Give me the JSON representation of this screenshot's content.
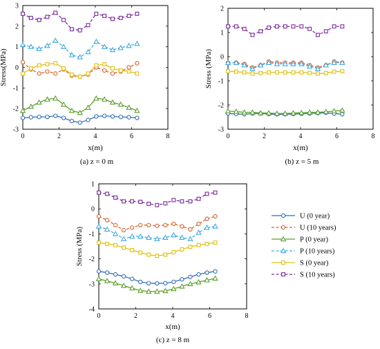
{
  "colors": {
    "U0": "#2f6db5",
    "U10": "#d4622a",
    "P0": "#5aa02c",
    "P10": "#3fa9e0",
    "S0": "#e0c010",
    "S10": "#7b2a9a"
  },
  "legend": [
    {
      "key": "U0",
      "label": "U (0 year)",
      "marker": "circle",
      "dash": false
    },
    {
      "key": "U10",
      "label": "U (10 years)",
      "marker": "circle",
      "dash": true
    },
    {
      "key": "P0",
      "label": "P (0 year)",
      "marker": "triangle",
      "dash": false
    },
    {
      "key": "P10",
      "label": "P (10 years)",
      "marker": "triangle",
      "dash": true
    },
    {
      "key": "S0",
      "label": "S (0 year)",
      "marker": "square",
      "dash": false
    },
    {
      "key": "S10",
      "label": "S (10 years)",
      "marker": "square",
      "dash": true
    }
  ],
  "chart_data": [
    {
      "type": "line",
      "caption": "(a) z = 0 m",
      "xlabel": "x(m)",
      "ylabel": "Stress(MPa)",
      "xlim": [
        0,
        8
      ],
      "ylim": [
        -3,
        3
      ],
      "xticks": [
        "0",
        "2",
        "4",
        "6",
        "8"
      ],
      "yticks": [
        "-3",
        "-2",
        "-1",
        "0",
        "1",
        "2",
        "3"
      ],
      "x": [
        0,
        0.45,
        0.9,
        1.35,
        1.8,
        2.25,
        2.7,
        3.15,
        3.6,
        4.05,
        4.5,
        4.95,
        5.4,
        5.85,
        6.3
      ],
      "series": [
        {
          "name": "U (0 year)",
          "key": "U0",
          "values": [
            -2.45,
            -2.42,
            -2.4,
            -2.4,
            -2.35,
            -2.45,
            -2.6,
            -2.68,
            -2.55,
            -2.38,
            -2.35,
            -2.38,
            -2.4,
            -2.42,
            -2.45
          ]
        },
        {
          "name": "U (10 years)",
          "key": "U10",
          "values": [
            0.25,
            -0.1,
            -0.3,
            -0.2,
            -0.3,
            -0.1,
            -0.4,
            -0.45,
            -0.35,
            0.0,
            -0.15,
            -0.3,
            -0.2,
            0.0,
            0.2
          ]
        },
        {
          "name": "P (0 year)",
          "key": "P0",
          "values": [
            -2.1,
            -1.9,
            -1.7,
            -1.55,
            -1.5,
            -1.8,
            -2.1,
            -2.2,
            -1.95,
            -1.5,
            -1.55,
            -1.7,
            -1.8,
            -1.95,
            -2.1
          ]
        },
        {
          "name": "P (10 years)",
          "key": "P10",
          "values": [
            1.1,
            1.0,
            0.9,
            1.05,
            1.3,
            1.0,
            0.6,
            0.5,
            0.75,
            1.25,
            1.0,
            0.85,
            0.95,
            1.05,
            1.15
          ]
        },
        {
          "name": "S (0 year)",
          "key": "S0",
          "values": [
            -0.3,
            -0.05,
            0.1,
            0.15,
            0.2,
            -0.05,
            -0.35,
            -0.45,
            -0.3,
            0.1,
            0.15,
            -0.05,
            -0.15,
            -0.2,
            -0.3
          ]
        },
        {
          "name": "S (10 years)",
          "key": "S10",
          "values": [
            2.6,
            2.4,
            2.3,
            2.45,
            2.65,
            2.3,
            1.85,
            1.8,
            2.05,
            2.6,
            2.5,
            2.35,
            2.4,
            2.5,
            2.6
          ]
        }
      ]
    },
    {
      "type": "line",
      "caption": "(b) z = 5 m",
      "xlabel": "x(m)",
      "ylabel": "Stress (MPa)",
      "xlim": [
        0,
        8
      ],
      "ylim": [
        -3,
        2
      ],
      "xticks": [
        "0",
        "2",
        "4",
        "6",
        "8"
      ],
      "yticks": [
        "-3",
        "-2",
        "-1",
        "0",
        "1",
        "2"
      ],
      "x": [
        0,
        0.45,
        0.9,
        1.35,
        1.8,
        2.25,
        2.7,
        3.15,
        3.6,
        4.05,
        4.5,
        4.95,
        5.4,
        5.85,
        6.3
      ],
      "series": [
        {
          "name": "U (0 year)",
          "key": "U0",
          "values": [
            -2.35,
            -2.37,
            -2.38,
            -2.35,
            -2.35,
            -2.37,
            -2.38,
            -2.38,
            -2.37,
            -2.36,
            -2.35,
            -2.33,
            -2.32,
            -2.35,
            -2.38
          ]
        },
        {
          "name": "U (10 years)",
          "key": "U10",
          "values": [
            -0.25,
            -0.25,
            -0.3,
            -0.45,
            -0.35,
            -0.2,
            -0.25,
            -0.25,
            -0.25,
            -0.25,
            -0.35,
            -0.45,
            -0.35,
            -0.2,
            -0.25
          ]
        },
        {
          "name": "P (0 year)",
          "key": "P0",
          "values": [
            -2.25,
            -2.27,
            -2.3,
            -2.3,
            -2.33,
            -2.33,
            -2.35,
            -2.35,
            -2.33,
            -2.32,
            -2.3,
            -2.3,
            -2.28,
            -2.25,
            -2.22
          ]
        },
        {
          "name": "P (10 years)",
          "key": "P10",
          "values": [
            -0.25,
            -0.25,
            -0.35,
            -0.5,
            -0.35,
            -0.25,
            -0.3,
            -0.3,
            -0.3,
            -0.3,
            -0.4,
            -0.5,
            -0.35,
            -0.25,
            -0.25
          ]
        },
        {
          "name": "S (0 year)",
          "key": "S0",
          "values": [
            -0.6,
            -0.62,
            -0.65,
            -0.7,
            -0.68,
            -0.65,
            -0.65,
            -0.65,
            -0.65,
            -0.65,
            -0.67,
            -0.7,
            -0.68,
            -0.62,
            -0.6
          ]
        },
        {
          "name": "S (10 years)",
          "key": "S10",
          "values": [
            1.25,
            1.25,
            1.15,
            0.9,
            1.05,
            1.2,
            1.25,
            1.25,
            1.25,
            1.25,
            1.15,
            0.9,
            1.05,
            1.25,
            1.25
          ]
        }
      ]
    },
    {
      "type": "line",
      "caption": "(c) z = 8 m",
      "xlabel": "x(m)",
      "ylabel": "Stress (MPa)",
      "xlim": [
        0,
        8
      ],
      "ylim": [
        -4,
        1
      ],
      "xticks": [
        "0",
        "2",
        "4",
        "6",
        "8"
      ],
      "yticks": [
        "-4",
        "-3",
        "-2",
        "-1",
        "0",
        "1"
      ],
      "x": [
        0,
        0.45,
        0.9,
        1.35,
        1.8,
        2.25,
        2.7,
        3.15,
        3.6,
        4.05,
        4.5,
        4.95,
        5.4,
        5.85,
        6.3
      ],
      "series": [
        {
          "name": "U (0 year)",
          "key": "U0",
          "values": [
            -2.5,
            -2.55,
            -2.62,
            -2.7,
            -2.8,
            -2.92,
            -2.97,
            -2.98,
            -2.97,
            -2.92,
            -2.82,
            -2.72,
            -2.62,
            -2.55,
            -2.5
          ]
        },
        {
          "name": "U (10 years)",
          "key": "U10",
          "values": [
            -0.3,
            -0.45,
            -0.65,
            -0.85,
            -0.75,
            -0.65,
            -0.65,
            -0.68,
            -0.65,
            -0.6,
            -0.7,
            -0.82,
            -0.6,
            -0.4,
            -0.3
          ]
        },
        {
          "name": "P (0 year)",
          "key": "P0",
          "values": [
            -2.8,
            -2.88,
            -2.97,
            -3.07,
            -3.17,
            -3.27,
            -3.3,
            -3.3,
            -3.28,
            -3.2,
            -3.1,
            -3.0,
            -2.93,
            -2.85,
            -2.78
          ]
        },
        {
          "name": "P (10 years)",
          "key": "P10",
          "values": [
            -0.7,
            -0.82,
            -1.0,
            -1.2,
            -1.1,
            -1.1,
            -1.15,
            -1.2,
            -1.15,
            -1.05,
            -1.15,
            -1.2,
            -0.95,
            -0.75,
            -0.7
          ]
        },
        {
          "name": "S (0 year)",
          "key": "S0",
          "values": [
            -1.35,
            -1.4,
            -1.45,
            -1.55,
            -1.65,
            -1.75,
            -1.83,
            -1.88,
            -1.83,
            -1.73,
            -1.62,
            -1.52,
            -1.45,
            -1.4,
            -1.35
          ]
        },
        {
          "name": "S (10 years)",
          "key": "S10",
          "values": [
            0.65,
            0.6,
            0.45,
            0.3,
            0.3,
            0.28,
            0.2,
            0.15,
            0.22,
            0.35,
            0.3,
            0.3,
            0.4,
            0.6,
            0.65
          ]
        }
      ]
    }
  ]
}
